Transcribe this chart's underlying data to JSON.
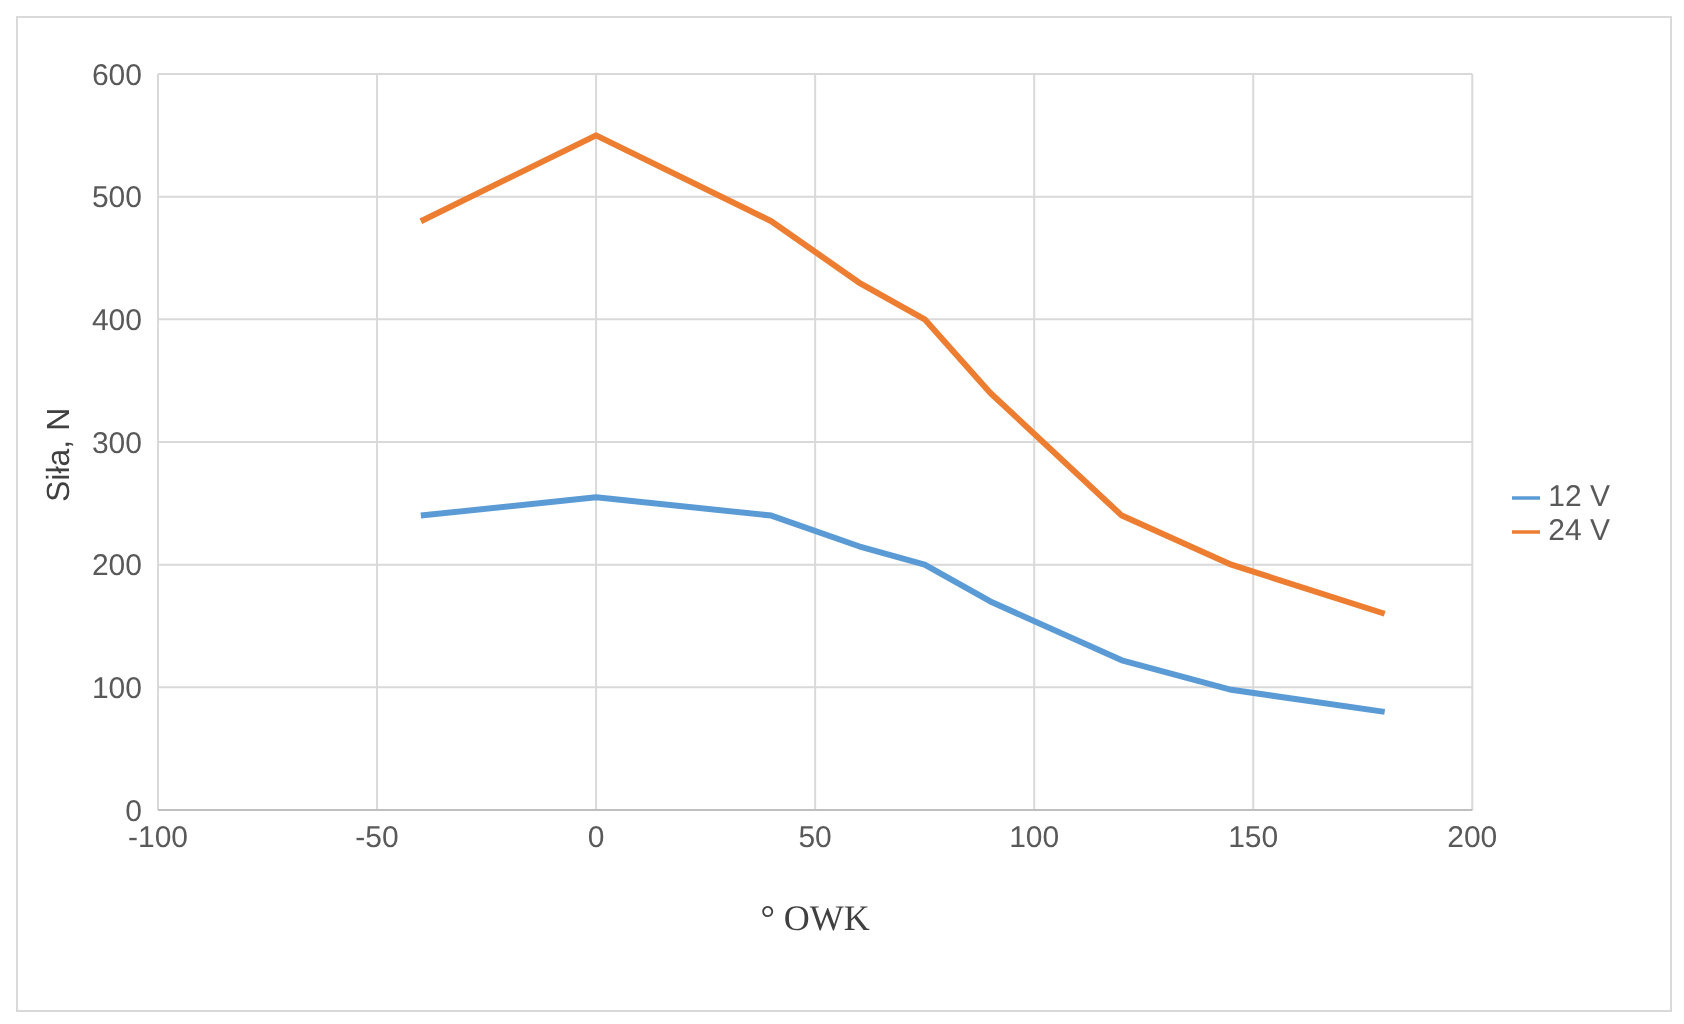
{
  "chart_data": {
    "type": "line",
    "xlabel": "° OWK",
    "ylabel": "Siła, N",
    "x": [
      -40,
      0,
      40,
      60,
      75,
      90,
      120,
      145,
      180
    ],
    "series": [
      {
        "name": "12 V",
        "color": "#5b9bd5",
        "values": [
          240,
          255,
          240,
          215,
          200,
          170,
          122,
          98,
          80
        ]
      },
      {
        "name": "24 V",
        "color": "#ed7d31",
        "values": [
          480,
          550,
          480,
          430,
          400,
          340,
          240,
          200,
          160
        ]
      }
    ],
    "xlim": [
      -100,
      200
    ],
    "xticks": [
      -100,
      -50,
      0,
      50,
      100,
      150,
      200
    ],
    "ylim": [
      0,
      600
    ],
    "yticks": [
      0,
      100,
      200,
      300,
      400,
      500,
      600
    ],
    "grid": true,
    "legend": "right",
    "marker": "none",
    "line_style": "solid"
  }
}
